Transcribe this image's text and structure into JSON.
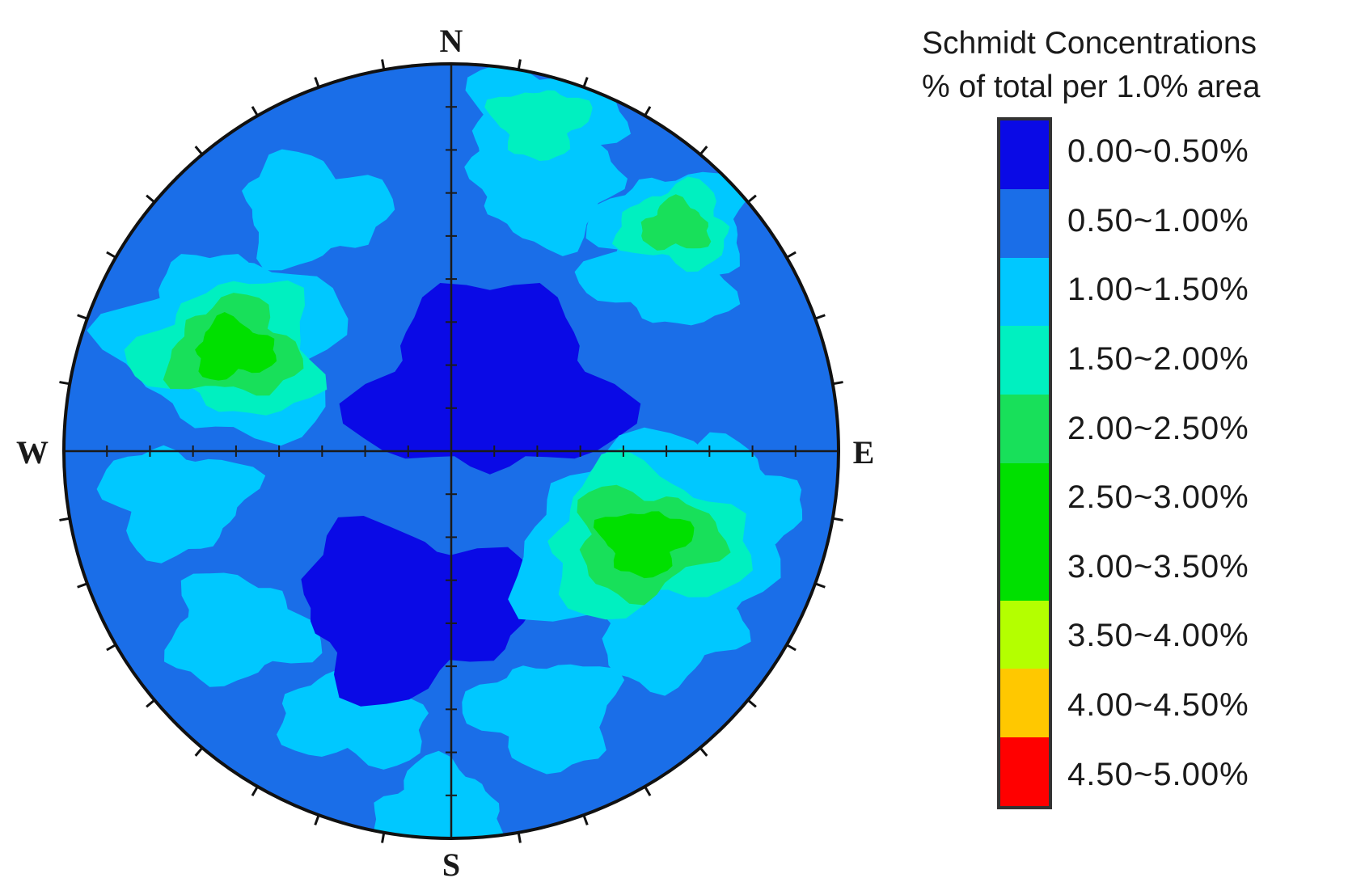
{
  "chart_data": {
    "type": "heatmap",
    "projection": "Schmidt equal-area stereonet (contoured pole density)",
    "directions": {
      "north": "N",
      "south": "S",
      "east": "E",
      "west": "W"
    },
    "legend": {
      "title_line1": "Schmidt Concentrations",
      "title_line2": "% of total per 1.0% area",
      "placement": "right",
      "bins": [
        {
          "label": "0.00~0.50%",
          "min": 0.0,
          "max": 0.5,
          "color": "#0a0ae6"
        },
        {
          "label": "0.50~1.00%",
          "min": 0.5,
          "max": 1.0,
          "color": "#1a6ee8"
        },
        {
          "label": "1.00~1.50%",
          "min": 1.0,
          "max": 1.5,
          "color": "#00c8ff"
        },
        {
          "label": "1.50~2.00%",
          "min": 1.5,
          "max": 2.0,
          "color": "#00f0c0"
        },
        {
          "label": "2.00~2.50%",
          "min": 2.0,
          "max": 2.5,
          "color": "#18e05a"
        },
        {
          "label": "2.50~3.00%",
          "min": 2.5,
          "max": 3.0,
          "color": "#00e000"
        },
        {
          "label": "3.00~3.50%",
          "min": 3.0,
          "max": 3.5,
          "color": "#00e000"
        },
        {
          "label": "3.50~4.00%",
          "min": 3.5,
          "max": 4.0,
          "color": "#b4ff00"
        },
        {
          "label": "4.00~4.50%",
          "min": 4.0,
          "max": 4.5,
          "color": "#ffc800"
        },
        {
          "label": "4.50~5.00%",
          "min": 4.5,
          "max": 5.0,
          "color": "#ff0000"
        }
      ]
    },
    "density_regions": [
      {
        "name": "central-north-low",
        "bin": 0,
        "trend_deg": 30,
        "radius_frac": 0.2,
        "spread_frac": 0.28
      },
      {
        "name": "central-south-low",
        "bin": 0,
        "trend_deg": 195,
        "radius_frac": 0.42,
        "spread_frac": 0.25
      },
      {
        "name": "west-cluster",
        "bin": 5,
        "trend_deg": 295,
        "radius_frac": 0.62,
        "spread_frac": 0.18
      },
      {
        "name": "east-southeast-cluster",
        "bin": 5,
        "trend_deg": 115,
        "radius_frac": 0.55,
        "spread_frac": 0.2
      },
      {
        "name": "north-northeast-cluster",
        "bin": 3,
        "trend_deg": 15,
        "radius_frac": 0.88,
        "spread_frac": 0.12
      },
      {
        "name": "northeast-cluster",
        "bin": 4,
        "trend_deg": 45,
        "radius_frac": 0.82,
        "spread_frac": 0.12
      },
      {
        "name": "south-rim",
        "bin": 2,
        "trend_deg": 182,
        "radius_frac": 0.93,
        "spread_frac": 0.1
      }
    ]
  }
}
